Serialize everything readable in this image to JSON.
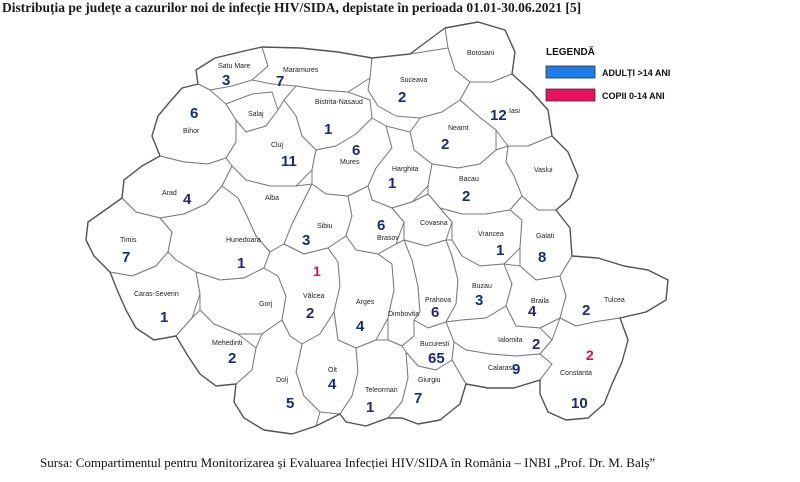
{
  "title": "Distribuția pe județe a cazurilor noi de infecție HIV/SIDA, depistate în perioada 01.01-30.06.2021 [5]",
  "source": "Sursa: Compartimentul pentru Monitorizarea și Evaluarea Infecției HIV/SIDA în România – INBI „Prof. Dr. M. Balș”",
  "legend": {
    "title": "LEGENDĂ",
    "adults": {
      "label": "ADULȚI >14 ANI",
      "color": "#1f7dea"
    },
    "children": {
      "label": "COPII 0-14 ANI",
      "color": "#e8125f"
    }
  },
  "counties": [
    {
      "name": "Satu Mare",
      "adults": "3"
    },
    {
      "name": "Maramures",
      "adults": "7"
    },
    {
      "name": "Botosani",
      "adults": ""
    },
    {
      "name": "Suceava",
      "adults": "2"
    },
    {
      "name": "Iasi",
      "adults": "12"
    },
    {
      "name": "Bihor",
      "adults": "6"
    },
    {
      "name": "Salaj",
      "adults": ""
    },
    {
      "name": "Bistrita-Nasaud",
      "adults": "1"
    },
    {
      "name": "Neamt",
      "adults": "2"
    },
    {
      "name": "Cluj",
      "adults": "11"
    },
    {
      "name": "Mures",
      "adults": "6"
    },
    {
      "name": "Harghita",
      "adults": "1"
    },
    {
      "name": "Vaslui",
      "adults": ""
    },
    {
      "name": "Bacau",
      "adults": "2"
    },
    {
      "name": "Arad",
      "adults": "4"
    },
    {
      "name": "Alba",
      "adults": ""
    },
    {
      "name": "Sibiu",
      "adults": "3"
    },
    {
      "name": "Brasov",
      "adults": "6"
    },
    {
      "name": "Covasna",
      "adults": ""
    },
    {
      "name": "Vrancea",
      "adults": "1"
    },
    {
      "name": "Galati",
      "adults": "8"
    },
    {
      "name": "Timis",
      "adults": "7"
    },
    {
      "name": "Hunedoara",
      "adults": "1"
    },
    {
      "name": "Caras-Severin",
      "adults": "1"
    },
    {
      "name": "Gorj",
      "adults": ""
    },
    {
      "name": "Vâlcea",
      "adults": "2",
      "children": "1"
    },
    {
      "name": "Arges",
      "adults": "4"
    },
    {
      "name": "Dimbovita",
      "adults": ""
    },
    {
      "name": "Prahova",
      "adults": "6"
    },
    {
      "name": "Buzau",
      "adults": "3"
    },
    {
      "name": "Braila",
      "adults": "4"
    },
    {
      "name": "Tulcea",
      "adults": "2"
    },
    {
      "name": "Mehedinti",
      "adults": "2"
    },
    {
      "name": "Ialomita",
      "adults": "2"
    },
    {
      "name": "Bucuresti",
      "adults": "65"
    },
    {
      "name": "Olt",
      "adults": "4"
    },
    {
      "name": "Calarasi",
      "adults": "9"
    },
    {
      "name": "Dolj",
      "adults": "5"
    },
    {
      "name": "Teleorman",
      "adults": "1"
    },
    {
      "name": "Giurgiu",
      "adults": "7"
    },
    {
      "name": "Constanta",
      "adults": "10",
      "children": "2"
    }
  ]
}
